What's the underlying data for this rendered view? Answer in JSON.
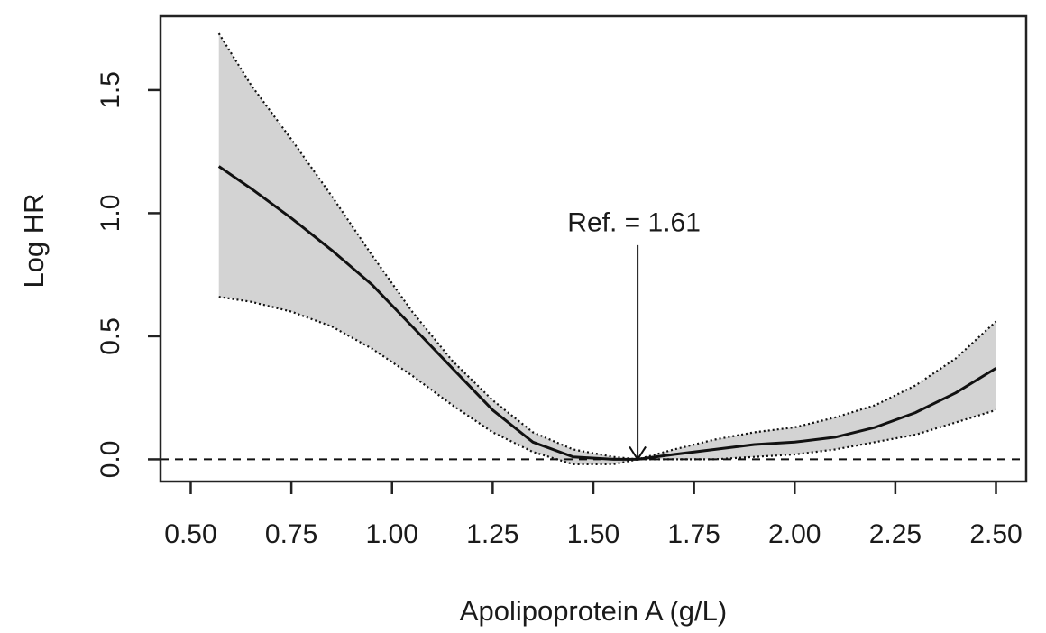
{
  "chart_data": {
    "type": "line",
    "title": "",
    "xlabel": "Apolipoprotein A (g/L)",
    "ylabel": "Log HR",
    "xlim": [
      0.425,
      2.575
    ],
    "ylim": [
      -0.09,
      1.8
    ],
    "x_ticks": [
      0.5,
      0.75,
      1.0,
      1.25,
      1.5,
      1.75,
      2.0,
      2.25,
      2.5
    ],
    "x_tick_labels": [
      "0.50",
      "0.75",
      "1.00",
      "1.25",
      "1.50",
      "1.75",
      "2.00",
      "2.25",
      "2.50"
    ],
    "y_ticks": [
      0.0,
      0.5,
      1.0,
      1.5
    ],
    "y_tick_labels": [
      "0.0",
      "0.5",
      "1.0",
      "1.5"
    ],
    "grid": false,
    "reference_line_y": 0.0,
    "annotation": {
      "text": "Ref. = 1.61",
      "x": 1.61,
      "y": 0.0
    },
    "series": [
      {
        "name": "",
        "role": "estimate",
        "x": [
          0.57,
          0.65,
          0.75,
          0.85,
          0.95,
          1.05,
          1.15,
          1.25,
          1.35,
          1.45,
          1.55,
          1.61,
          1.7,
          1.8,
          1.9,
          2.0,
          2.1,
          2.2,
          2.3,
          2.4,
          2.5
        ],
        "y": [
          1.19,
          1.1,
          0.98,
          0.85,
          0.71,
          0.54,
          0.37,
          0.2,
          0.07,
          0.01,
          0.0,
          0.0,
          0.02,
          0.04,
          0.06,
          0.07,
          0.09,
          0.13,
          0.19,
          0.27,
          0.37
        ]
      },
      {
        "name": "",
        "role": "upper_ci",
        "x": [
          0.57,
          0.65,
          0.75,
          0.85,
          0.95,
          1.05,
          1.15,
          1.25,
          1.35,
          1.45,
          1.55,
          1.61,
          1.7,
          1.8,
          1.9,
          2.0,
          2.1,
          2.2,
          2.3,
          2.4,
          2.5
        ],
        "y": [
          1.73,
          1.52,
          1.3,
          1.07,
          0.83,
          0.6,
          0.4,
          0.24,
          0.11,
          0.04,
          0.01,
          0.0,
          0.04,
          0.08,
          0.11,
          0.13,
          0.17,
          0.22,
          0.3,
          0.41,
          0.56
        ]
      },
      {
        "name": "",
        "role": "lower_ci",
        "x": [
          0.57,
          0.65,
          0.75,
          0.85,
          0.95,
          1.05,
          1.15,
          1.25,
          1.35,
          1.45,
          1.55,
          1.61,
          1.7,
          1.8,
          1.9,
          2.0,
          2.1,
          2.2,
          2.3,
          2.4,
          2.5
        ],
        "y": [
          0.66,
          0.64,
          0.6,
          0.54,
          0.45,
          0.34,
          0.22,
          0.11,
          0.03,
          -0.02,
          -0.02,
          0.0,
          0.0,
          0.0,
          0.01,
          0.02,
          0.04,
          0.07,
          0.1,
          0.15,
          0.2
        ]
      }
    ],
    "colors": {
      "band_fill": "#d3d3d3",
      "line": "#111111",
      "axis": "#222222"
    }
  }
}
